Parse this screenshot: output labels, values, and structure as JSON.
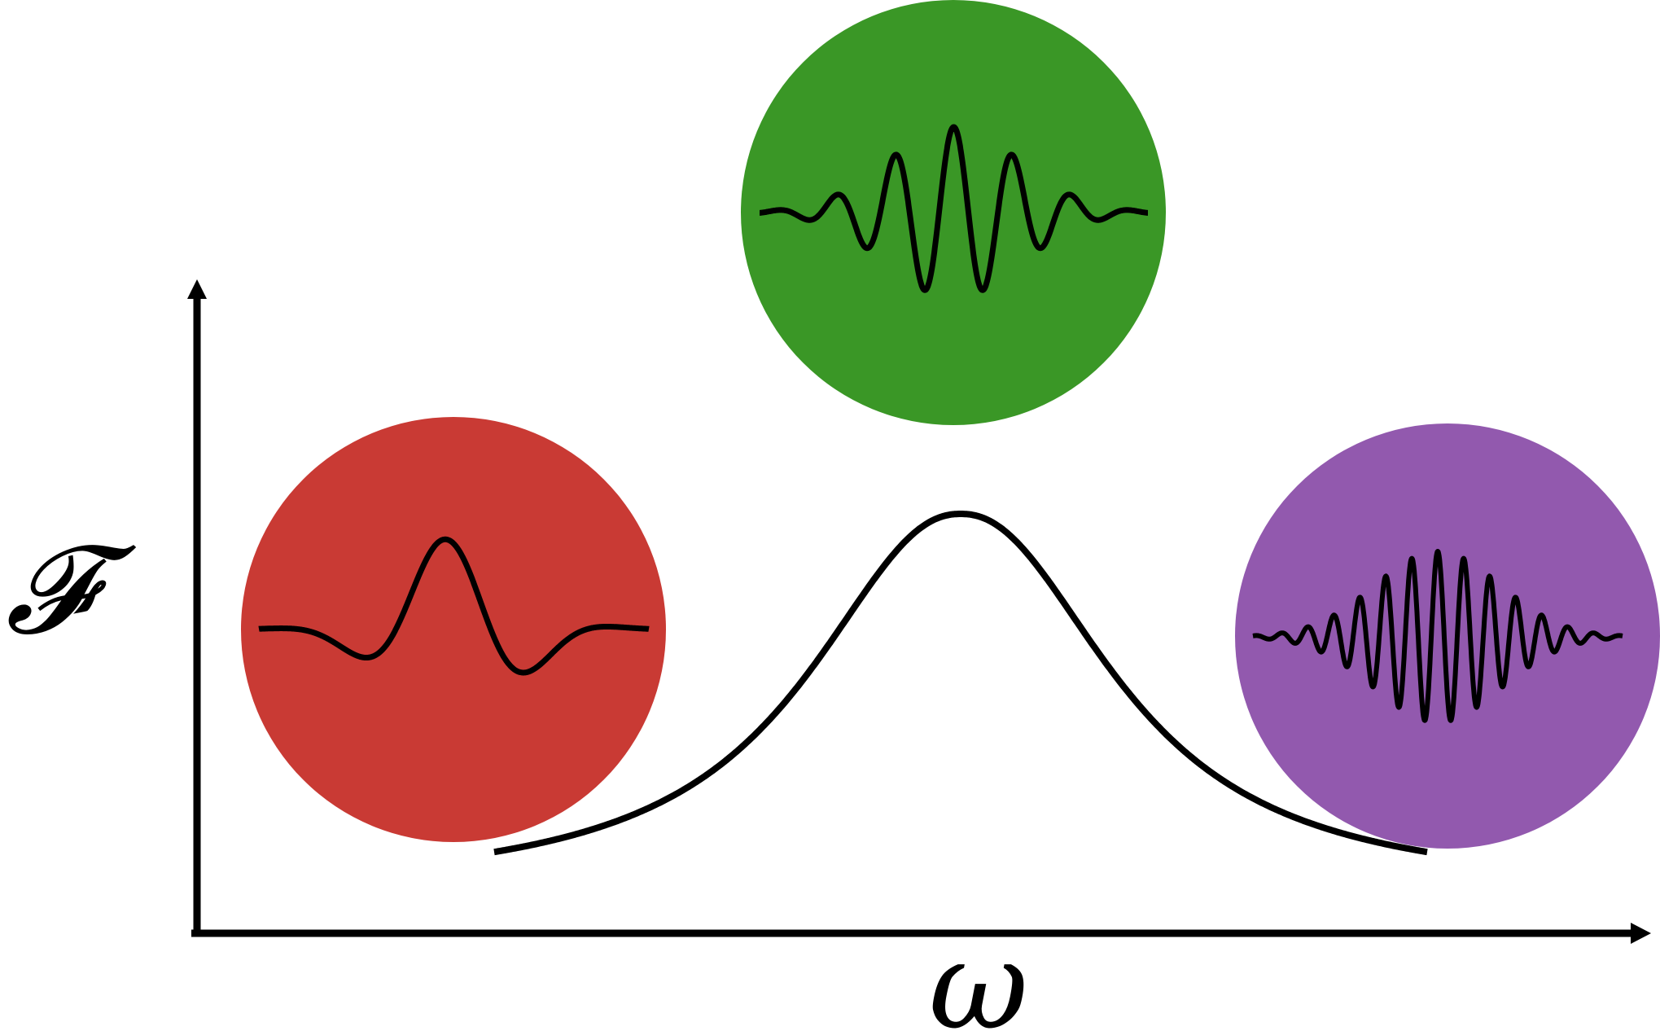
{
  "axes": {
    "y_label": "𝓕",
    "x_label": "ω"
  },
  "colors": {
    "axis": "#000000",
    "curve": "#000000",
    "red_circle": "#c93a34",
    "green_circle": "#3a9726",
    "purple_circle": "#9259ae",
    "background": "#ffffff"
  },
  "spectrum": {
    "shape": "gaussian-like peak",
    "peak_position": "center"
  },
  "wave_packets": [
    {
      "id": "low-frequency",
      "color_key": "red_circle",
      "cycles": "few"
    },
    {
      "id": "mid-frequency",
      "color_key": "green_circle",
      "cycles": "medium"
    },
    {
      "id": "high-frequency",
      "color_key": "purple_circle",
      "cycles": "many"
    }
  ]
}
